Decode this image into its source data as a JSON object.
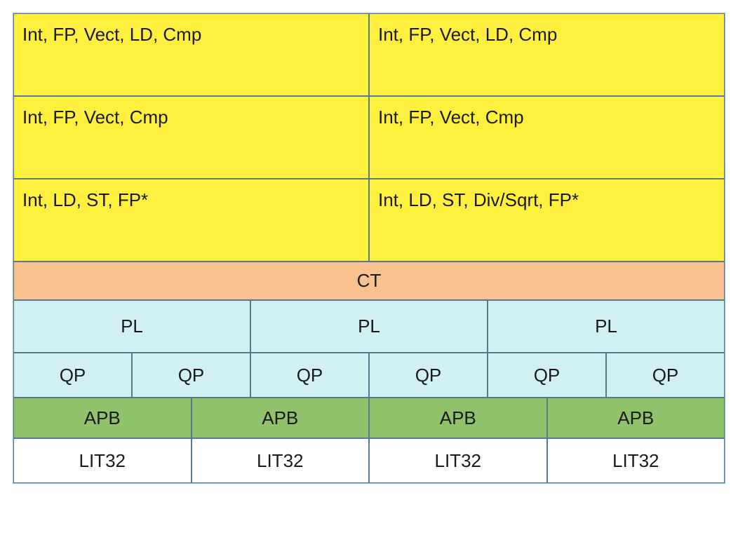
{
  "colors": {
    "yellow": "#fff040",
    "orange": "#f8c190",
    "lightblue": "#d0f0f4",
    "green": "#8fc26a",
    "white": "#ffffff",
    "border": "#577a8f",
    "text": "#1a1a1a"
  },
  "fontsize": 26,
  "rows": {
    "exec": [
      {
        "left": "Int, FP, Vect, LD, Cmp",
        "right": "Int, FP, Vect, LD, Cmp"
      },
      {
        "left": "Int, FP, Vect, Cmp",
        "right": "Int, FP, Vect, Cmp"
      },
      {
        "left": "Int, LD, ST, FP*",
        "right": "Int, LD, ST, Div/Sqrt, FP*"
      }
    ],
    "ct": {
      "label": "CT"
    },
    "pl": {
      "labels": [
        "PL",
        "PL",
        "PL"
      ]
    },
    "qp": {
      "labels": [
        "QP",
        "QP",
        "QP",
        "QP",
        "QP",
        "QP"
      ]
    },
    "apb": {
      "labels": [
        "APB",
        "APB",
        "APB",
        "APB"
      ]
    },
    "lit": {
      "labels": [
        "LIT32",
        "LIT32",
        "LIT32",
        "LIT32"
      ]
    }
  },
  "row_heights": {
    "exec": 118,
    "ct": 55,
    "pl": 75,
    "qp": 64,
    "apb": 58,
    "lit": 64
  },
  "row_colors": {
    "exec": "yellow",
    "ct": "orange",
    "pl": "lightblue",
    "qp": "lightblue",
    "apb": "green",
    "lit": "white"
  }
}
